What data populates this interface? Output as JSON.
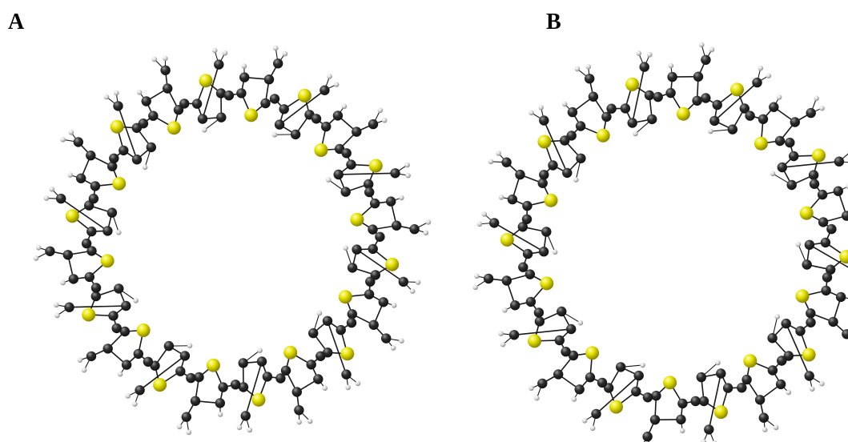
{
  "panels": [
    {
      "label": "A",
      "thiophene_units": 20,
      "colors": {
        "carbon": "#2e2e2e",
        "sulfur": "#e4e000",
        "hydrogen": "#e0e0e0",
        "bond": "#1a1a1a"
      }
    },
    {
      "label": "B",
      "thiophene_units": 20,
      "colors": {
        "carbon": "#2e2e2e",
        "sulfur": "#e4e000",
        "hydrogen": "#e0e0e0",
        "bond": "#1a1a1a"
      }
    }
  ]
}
